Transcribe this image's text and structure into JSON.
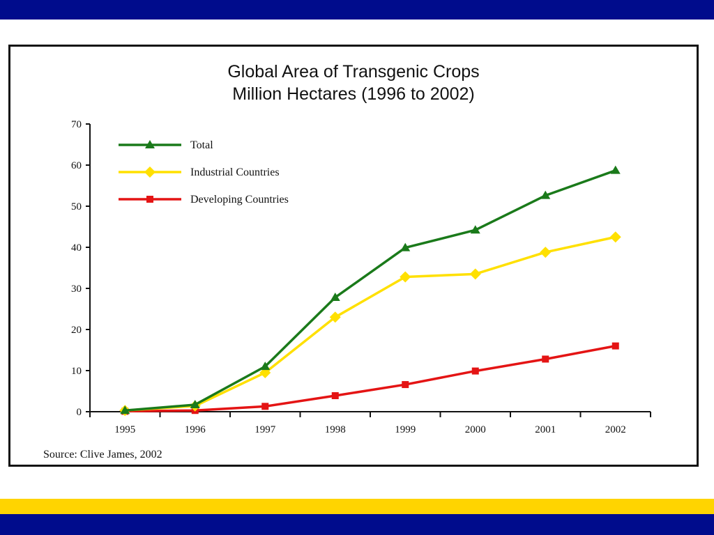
{
  "slide": {
    "top_band_color": "#000c8c",
    "bottom_yellow_color": "#ffd400",
    "bottom_blue_color": "#000c8c"
  },
  "chart_data": {
    "type": "line",
    "title": "Global Area of Transgenic Crops",
    "subtitle": "Million Hectares (1996 to 2002)",
    "source": "Source: Clive James, 2002",
    "xlabel": "",
    "ylabel": "",
    "categories": [
      "1995",
      "1996",
      "1997",
      "1998",
      "1999",
      "2000",
      "2001",
      "2002"
    ],
    "ylim": [
      0,
      70
    ],
    "yticks": [
      0,
      10,
      20,
      30,
      40,
      50,
      60,
      70
    ],
    "grid": false,
    "legend_position": "top-left",
    "series": [
      {
        "name": "Total",
        "color": "#1a7a1a",
        "marker": "triangle",
        "values": [
          0.3,
          1.7,
          11,
          27.8,
          39.9,
          44.2,
          52.6,
          58.7
        ]
      },
      {
        "name": "Industrial Countries",
        "color": "#ffe000",
        "marker": "diamond",
        "values": [
          0.3,
          1.4,
          9.5,
          23,
          32.8,
          33.5,
          38.8,
          42.5
        ]
      },
      {
        "name": "Developing Countries",
        "color": "#e41414",
        "marker": "square",
        "values": [
          0.1,
          0.3,
          1.3,
          3.9,
          6.6,
          9.9,
          12.8,
          16
        ]
      }
    ]
  }
}
